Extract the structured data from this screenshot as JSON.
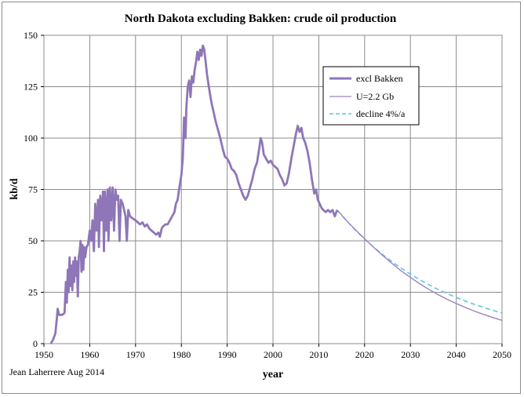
{
  "chart_data": {
    "type": "line",
    "title": "North Dakota excluding Bakken: crude oil production",
    "xlabel": "year",
    "ylabel": "kb/d",
    "xlim": [
      1950,
      2050
    ],
    "ylim": [
      0,
      150
    ],
    "x_ticks": [
      1950,
      1960,
      1970,
      1980,
      1990,
      2000,
      2010,
      2020,
      2030,
      2040,
      2050
    ],
    "y_ticks": [
      0,
      25,
      50,
      75,
      100,
      125,
      150
    ],
    "grid": "on",
    "legend_position": "top-right",
    "credit": "Jean Laherrere Aug 2014",
    "colors": {
      "excl": "#8e76b8",
      "u22": "#9a82c2",
      "decline": "#5bc4e0",
      "grid": "#8c8c8c"
    },
    "series": [
      {
        "name": "excl Bakken",
        "style": "thick",
        "points": [
          [
            1951.5,
            0
          ],
          [
            1952,
            2
          ],
          [
            1952.5,
            5
          ],
          [
            1952.8,
            12
          ],
          [
            1953,
            17
          ],
          [
            1953.3,
            14
          ],
          [
            1954,
            14
          ],
          [
            1954.5,
            15
          ],
          [
            1954.8,
            30
          ],
          [
            1955,
            20
          ],
          [
            1955.2,
            36
          ],
          [
            1955.4,
            25
          ],
          [
            1955.6,
            42
          ],
          [
            1955.8,
            28
          ],
          [
            1956,
            38
          ],
          [
            1956.2,
            26
          ],
          [
            1956.4,
            40
          ],
          [
            1956.6,
            30
          ],
          [
            1956.8,
            42
          ],
          [
            1957,
            33
          ],
          [
            1957.2,
            40
          ],
          [
            1957.4,
            23
          ],
          [
            1957.6,
            42
          ],
          [
            1957.8,
            45
          ],
          [
            1958,
            50
          ],
          [
            1958.2,
            35
          ],
          [
            1958.4,
            48
          ],
          [
            1958.6,
            36
          ],
          [
            1958.8,
            47
          ],
          [
            1959,
            42
          ],
          [
            1959.3,
            47
          ],
          [
            1959.6,
            48
          ],
          [
            1960,
            55
          ],
          [
            1960.3,
            50
          ],
          [
            1960.6,
            60
          ],
          [
            1960.9,
            45
          ],
          [
            1961.2,
            68
          ],
          [
            1961.5,
            55
          ],
          [
            1961.8,
            70
          ],
          [
            1962,
            47
          ],
          [
            1962.3,
            72
          ],
          [
            1962.6,
            60
          ],
          [
            1962.9,
            74
          ],
          [
            1963.1,
            45
          ],
          [
            1963.3,
            74
          ],
          [
            1963.6,
            55
          ],
          [
            1963.9,
            75
          ],
          [
            1964.1,
            50
          ],
          [
            1964.4,
            76
          ],
          [
            1964.7,
            60
          ],
          [
            1965,
            76
          ],
          [
            1965.3,
            55
          ],
          [
            1965.6,
            75
          ],
          [
            1965.9,
            70
          ],
          [
            1966.2,
            72
          ],
          [
            1966.5,
            50
          ],
          [
            1966.8,
            70
          ],
          [
            1967.2,
            68
          ],
          [
            1967.5,
            65
          ],
          [
            1967.8,
            62
          ],
          [
            1968.1,
            50
          ],
          [
            1968.4,
            65
          ],
          [
            1968.8,
            62
          ],
          [
            1969.3,
            61
          ],
          [
            1970,
            60
          ],
          [
            1970.5,
            59
          ],
          [
            1971,
            58
          ],
          [
            1971.5,
            59
          ],
          [
            1972,
            57
          ],
          [
            1972.5,
            58
          ],
          [
            1973,
            56
          ],
          [
            1973.5,
            55
          ],
          [
            1974,
            54
          ],
          [
            1974.5,
            53
          ],
          [
            1975,
            54
          ],
          [
            1975.3,
            52
          ],
          [
            1975.7,
            56
          ],
          [
            1976,
            57
          ],
          [
            1976.5,
            58
          ],
          [
            1977,
            58
          ],
          [
            1977.5,
            60
          ],
          [
            1978,
            62
          ],
          [
            1978.5,
            64
          ],
          [
            1978.8,
            68
          ],
          [
            1979.2,
            70
          ],
          [
            1979.5,
            75
          ],
          [
            1980,
            82
          ],
          [
            1980.3,
            90
          ],
          [
            1980.6,
            110
          ],
          [
            1980.9,
            100
          ],
          [
            1981.1,
            115
          ],
          [
            1981.4,
            125
          ],
          [
            1981.7,
            128
          ],
          [
            1982,
            120
          ],
          [
            1982.3,
            130
          ],
          [
            1982.6,
            127
          ],
          [
            1982.9,
            133
          ],
          [
            1983.2,
            137
          ],
          [
            1983.5,
            142
          ],
          [
            1983.8,
            138
          ],
          [
            1984.1,
            143
          ],
          [
            1984.4,
            140
          ],
          [
            1984.7,
            145
          ],
          [
            1985,
            143
          ],
          [
            1985.3,
            137
          ],
          [
            1985.6,
            131
          ],
          [
            1986,
            125
          ],
          [
            1986.5,
            118
          ],
          [
            1987,
            113
          ],
          [
            1987.5,
            108
          ],
          [
            1988,
            104
          ],
          [
            1988.5,
            100
          ],
          [
            1989,
            95
          ],
          [
            1989.5,
            91
          ],
          [
            1990,
            90
          ],
          [
            1990.5,
            88
          ],
          [
            1991,
            85
          ],
          [
            1991.5,
            84
          ],
          [
            1992,
            82
          ],
          [
            1992.5,
            78
          ],
          [
            1993,
            75
          ],
          [
            1993.5,
            72
          ],
          [
            1994,
            70
          ],
          [
            1994.5,
            72
          ],
          [
            1995,
            76
          ],
          [
            1995.5,
            80
          ],
          [
            1996,
            85
          ],
          [
            1996.5,
            88
          ],
          [
            1997,
            95
          ],
          [
            1997.3,
            100
          ],
          [
            1997.6,
            98
          ],
          [
            1998,
            92
          ],
          [
            1998.5,
            90
          ],
          [
            1999,
            88
          ],
          [
            1999.5,
            89
          ],
          [
            2000,
            87
          ],
          [
            2000.5,
            86
          ],
          [
            2001,
            85
          ],
          [
            2001.5,
            82
          ],
          [
            2002,
            80
          ],
          [
            2002.5,
            77
          ],
          [
            2003,
            78
          ],
          [
            2003.5,
            83
          ],
          [
            2004,
            90
          ],
          [
            2004.5,
            96
          ],
          [
            2005,
            102
          ],
          [
            2005.4,
            106
          ],
          [
            2005.8,
            103
          ],
          [
            2006.2,
            105
          ],
          [
            2006.6,
            100
          ],
          [
            2007,
            98
          ],
          [
            2007.5,
            94
          ],
          [
            2008,
            88
          ],
          [
            2008.5,
            80
          ],
          [
            2009,
            73
          ],
          [
            2009.4,
            75
          ],
          [
            2009.8,
            70
          ],
          [
            2010.2,
            68
          ],
          [
            2010.6,
            66
          ],
          [
            2011,
            65
          ],
          [
            2011.5,
            64
          ],
          [
            2012,
            65
          ],
          [
            2012.5,
            64
          ],
          [
            2013,
            65
          ],
          [
            2013.5,
            62
          ],
          [
            2014,
            65
          ]
        ]
      },
      {
        "name": "U=2.2 Gb",
        "style": "thin",
        "points": [
          [
            2014,
            65
          ],
          [
            2016,
            60
          ],
          [
            2018,
            55.4
          ],
          [
            2020,
            51
          ],
          [
            2022,
            46.8
          ],
          [
            2024,
            42.8
          ],
          [
            2026,
            39
          ],
          [
            2028,
            35.4
          ],
          [
            2030,
            32.2
          ],
          [
            2032,
            29.2
          ],
          [
            2034,
            26.4
          ],
          [
            2036,
            23.9
          ],
          [
            2038,
            21.6
          ],
          [
            2040,
            19.5
          ],
          [
            2042,
            17.6
          ],
          [
            2044,
            15.8
          ],
          [
            2046,
            14.2
          ],
          [
            2048,
            12.7
          ],
          [
            2050,
            11.3
          ]
        ]
      },
      {
        "name": "decline 4%/a",
        "style": "dashed",
        "points": [
          [
            2014,
            65
          ],
          [
            2016,
            59.9
          ],
          [
            2018,
            55.2
          ],
          [
            2020,
            50.9
          ],
          [
            2022,
            46.9
          ],
          [
            2024,
            43.2
          ],
          [
            2026,
            39.8
          ],
          [
            2028,
            36.7
          ],
          [
            2030,
            33.8
          ],
          [
            2032,
            31.1
          ],
          [
            2034,
            28.7
          ],
          [
            2036,
            26.4
          ],
          [
            2038,
            24.4
          ],
          [
            2040,
            22.5
          ],
          [
            2042,
            20.7
          ],
          [
            2044,
            19.1
          ],
          [
            2046,
            17.6
          ],
          [
            2048,
            16.2
          ],
          [
            2050,
            14.9
          ]
        ]
      }
    ]
  }
}
